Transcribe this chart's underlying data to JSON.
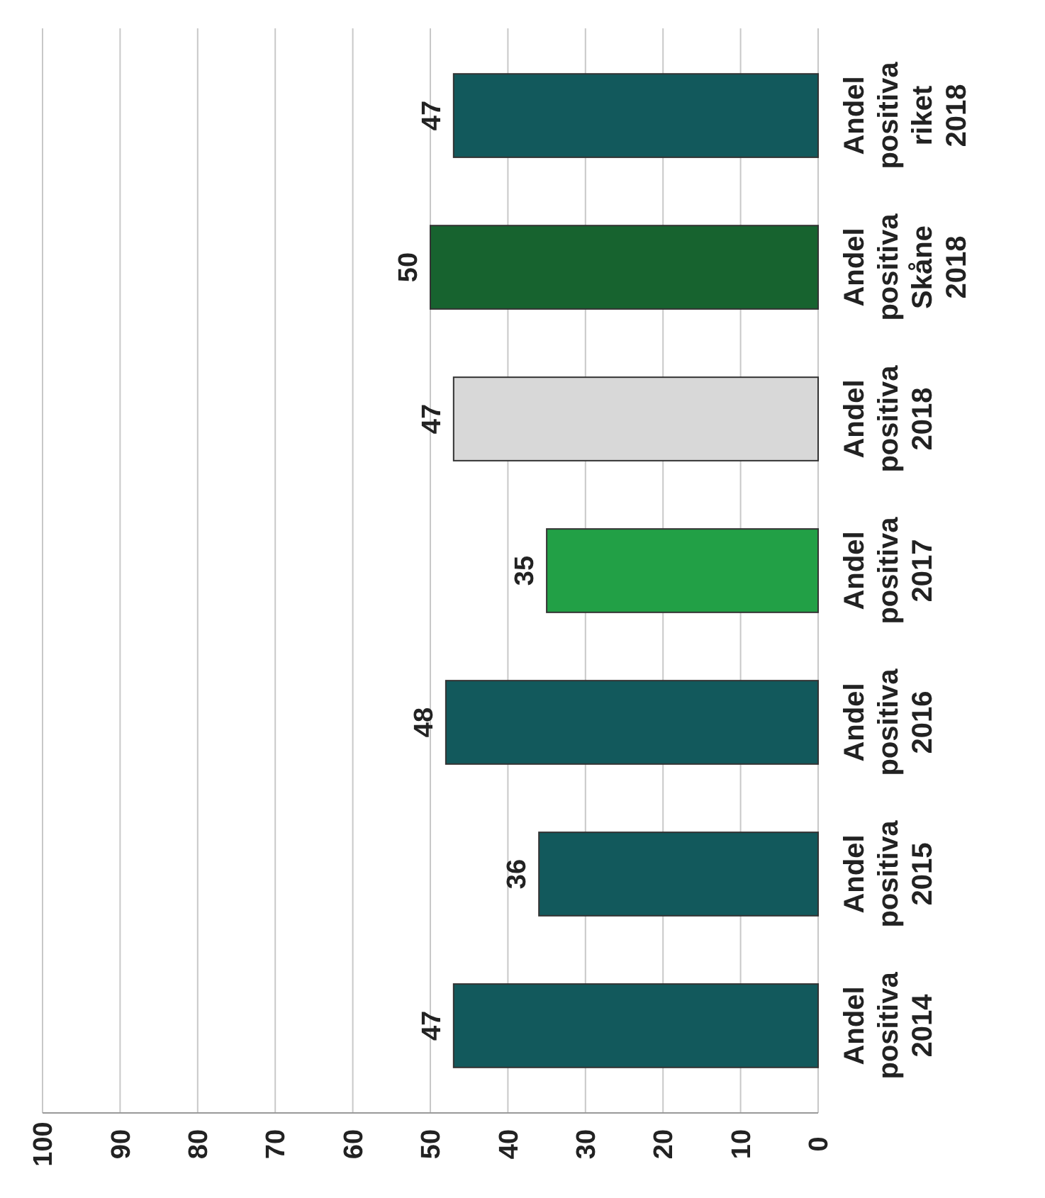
{
  "chart_data": {
    "type": "bar",
    "orientation": "horizontal",
    "categories": [
      "Andel positiva riket 2018",
      "Andel positiva Skåne 2018",
      "Andel positiva 2018",
      "Andel positiva 2017",
      "Andel positiva 2016",
      "Andel positiva 2015",
      "Andel positiva 2014"
    ],
    "values": [
      47,
      50,
      47,
      35,
      48,
      36,
      47
    ],
    "colors": [
      "#12595c",
      "#17632f",
      "#d8d8d8",
      "#22a046",
      "#12595c",
      "#12595c",
      "#12595c"
    ],
    "xlim": [
      100,
      0
    ],
    "xticks": [
      0,
      10,
      20,
      30,
      40,
      50,
      60,
      70,
      80,
      90,
      100
    ],
    "grid": true,
    "data_labels": true
  }
}
